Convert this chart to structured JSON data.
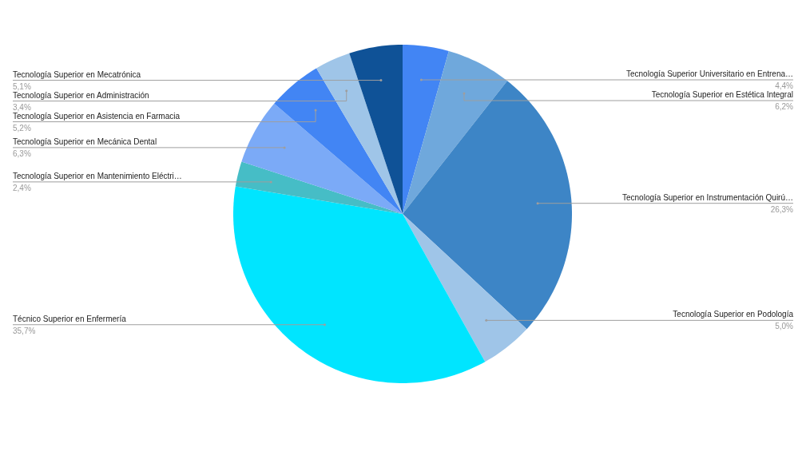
{
  "chart_data": {
    "type": "pie",
    "categories": [
      "Tecnología Superior Universitario en Entrena…",
      "Tecnología Superior en Estética Integral",
      "Tecnología Superior en Instrumentación Quirú…",
      "Tecnología Superior en Podología",
      "Técnico Superior en Enfermería",
      "Tecnología Superior en Mantenimiento Eléctri…",
      "Tecnología Superior en Mecánica Dental",
      "Tecnología Superior en Asistencia en Farmacia",
      "Tecnología Superior en Administración",
      "Tecnología Superior en Mecatrónica"
    ],
    "values": [
      4.4,
      6.2,
      26.3,
      5.0,
      35.7,
      2.4,
      6.3,
      5.2,
      3.4,
      5.1
    ],
    "value_labels": [
      "4,4%",
      "6,2%",
      "26,3%",
      "5,0%",
      "35,7%",
      "2,4%",
      "6,3%",
      "5,2%",
      "3,4%",
      "5,1%"
    ],
    "colors": [
      "#4285f4",
      "#6fa8dc",
      "#3d85c6",
      "#9fc5e8",
      "#00e5ff",
      "#46bdc6",
      "#7baaf7",
      "#4285f4",
      "#9fc5e8",
      "#0f5297"
    ]
  }
}
